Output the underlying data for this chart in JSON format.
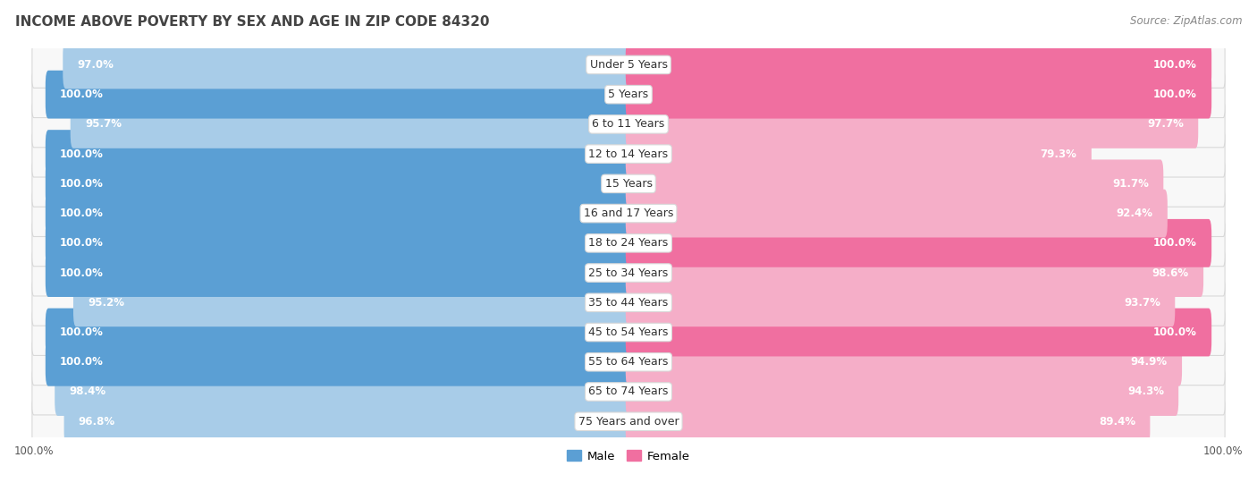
{
  "title": "INCOME ABOVE POVERTY BY SEX AND AGE IN ZIP CODE 84320",
  "source": "Source: ZipAtlas.com",
  "categories": [
    "Under 5 Years",
    "5 Years",
    "6 to 11 Years",
    "12 to 14 Years",
    "15 Years",
    "16 and 17 Years",
    "18 to 24 Years",
    "25 to 34 Years",
    "35 to 44 Years",
    "45 to 54 Years",
    "55 to 64 Years",
    "65 to 74 Years",
    "75 Years and over"
  ],
  "male_values": [
    97.0,
    100.0,
    95.7,
    100.0,
    100.0,
    100.0,
    100.0,
    100.0,
    95.2,
    100.0,
    100.0,
    98.4,
    96.8
  ],
  "female_values": [
    100.0,
    100.0,
    97.7,
    79.3,
    91.7,
    92.4,
    100.0,
    98.6,
    93.7,
    100.0,
    94.9,
    94.3,
    89.4
  ],
  "male_color_full": "#5b9fd4",
  "male_color_partial": "#a8cce8",
  "female_color_full": "#f06fa0",
  "female_color_partial": "#f5aec8",
  "background_color": "#ffffff",
  "row_border_color": "#d8d8d8",
  "row_bg_color": "#f8f8f8",
  "label_fontsize": 9.0,
  "value_fontsize": 8.5,
  "title_fontsize": 11,
  "source_fontsize": 8.5
}
